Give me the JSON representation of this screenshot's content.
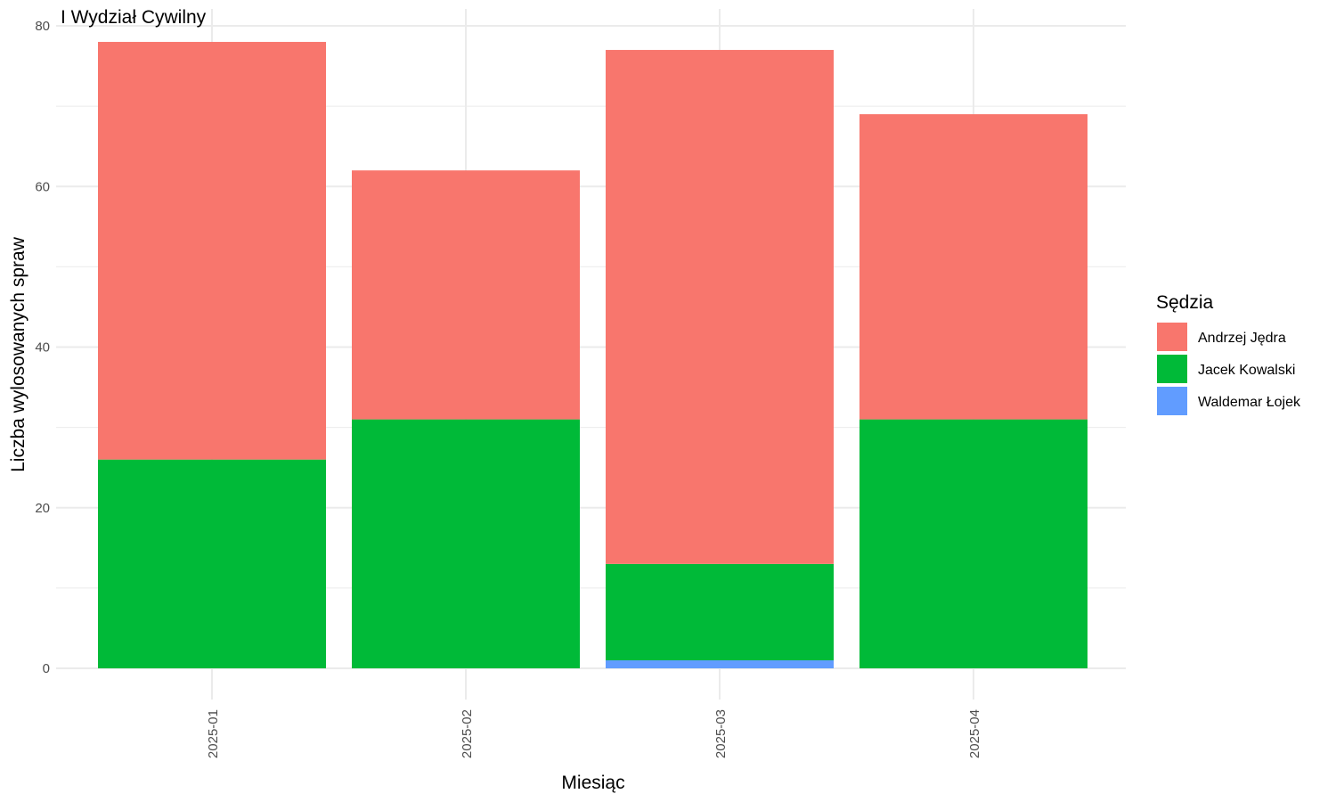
{
  "chart_data": {
    "type": "bar",
    "stacked": true,
    "title": "I Wydział Cywilny",
    "xlabel": "Miesiąc",
    "ylabel": "Liczba wylosowanych spraw",
    "categories": [
      "2025-01",
      "2025-02",
      "2025-03",
      "2025-04"
    ],
    "ylim": [
      0,
      80
    ],
    "yticks": [
      0,
      20,
      40,
      60,
      80
    ],
    "grid": true,
    "legend": {
      "title": "Sędzia",
      "position": "right"
    },
    "series": [
      {
        "name": "Andrzej Jędra",
        "color": "#F8766D",
        "values": [
          52,
          31,
          64,
          38
        ]
      },
      {
        "name": "Jacek Kowalski",
        "color": "#00BA38",
        "values": [
          26,
          31,
          12,
          31
        ]
      },
      {
        "name": "Waldemar Łojek",
        "color": "#619CFF",
        "values": [
          0,
          0,
          1,
          0
        ]
      }
    ],
    "stack_order_bottom_to_top": [
      "Waldemar Łojek",
      "Jacek Kowalski",
      "Andrzej Jędra"
    ]
  }
}
